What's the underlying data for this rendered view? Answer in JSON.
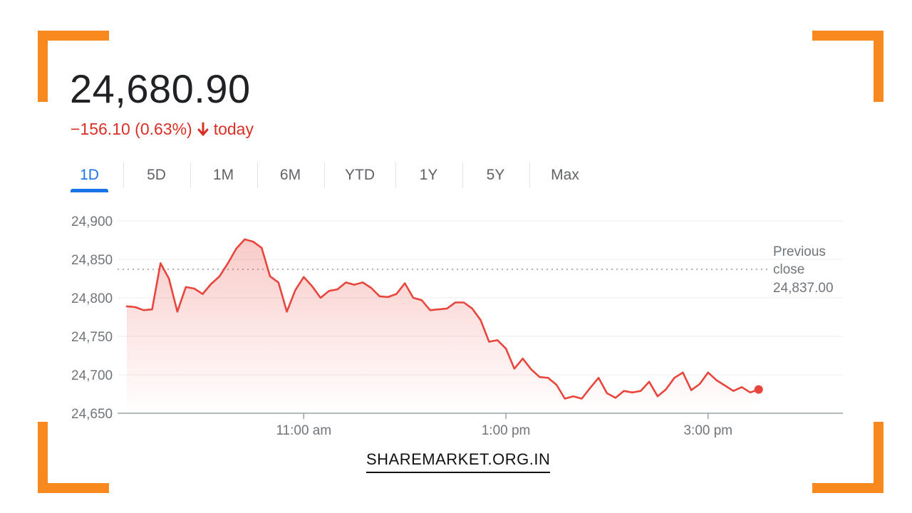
{
  "quote": {
    "price": "24,680.90",
    "change": "−156.10 (0.63%)",
    "change_suffix": "today",
    "change_icon": "arrow-down-icon",
    "change_color": "#d93025"
  },
  "tabs": [
    {
      "label": "1D",
      "active": true
    },
    {
      "label": "5D"
    },
    {
      "label": "1M"
    },
    {
      "label": "6M"
    },
    {
      "label": "YTD"
    },
    {
      "label": "1Y"
    },
    {
      "label": "5Y"
    },
    {
      "label": "Max"
    }
  ],
  "accent_color": "#1a73e8",
  "frame_color": "#f7891f",
  "footer": {
    "label": "SHAREMARKET.ORG.IN"
  },
  "chart_data": {
    "type": "line",
    "x_unit": "time of day",
    "ylim": [
      24650,
      24900
    ],
    "y_ticks": [
      "24,900",
      "24,850",
      "24,800",
      "24,750",
      "24,700",
      "24,650"
    ],
    "y_tick_values": [
      24900,
      24850,
      24800,
      24750,
      24700,
      24650
    ],
    "x_ticks": [
      {
        "label": "11:00 am",
        "minutes": 660
      },
      {
        "label": "1:00 pm",
        "minutes": 780
      },
      {
        "label": "3:00 pm",
        "minutes": 900
      }
    ],
    "x_range_minutes": [
      555,
      980
    ],
    "previous_close": {
      "label_line1": "Previous",
      "label_line2": "close",
      "value_label": "24,837.00",
      "value": 24837
    },
    "line_color": "#e8453c",
    "grid": true,
    "series": [
      {
        "x": [
          555,
          560,
          565,
          570,
          575,
          580,
          585,
          590,
          595,
          600,
          605,
          610,
          615,
          620,
          625,
          630,
          635,
          640,
          645,
          650,
          655,
          660,
          665,
          670,
          675,
          680,
          685,
          690,
          695,
          700,
          705,
          710,
          715,
          720,
          725,
          730,
          735,
          740,
          745,
          750,
          755,
          760,
          765,
          770,
          775,
          780,
          785,
          790,
          795,
          800,
          805,
          810,
          815,
          820,
          825,
          830,
          835,
          840,
          845,
          850,
          855,
          860,
          865,
          870,
          875,
          880,
          885,
          890,
          895,
          900,
          905,
          910,
          915,
          920,
          925,
          930
        ],
        "y": [
          24789,
          24788,
          24784,
          24785,
          24845,
          24825,
          24782,
          24814,
          24812,
          24805,
          24818,
          24828,
          24845,
          24864,
          24876,
          24873,
          24865,
          24828,
          24820,
          24782,
          24810,
          24827,
          24815,
          24800,
          24809,
          24811,
          24820,
          24817,
          24820,
          24813,
          24802,
          24801,
          24805,
          24819,
          24800,
          24797,
          24784,
          24785,
          24786,
          24794,
          24794,
          24786,
          24771,
          24743,
          24745,
          24734,
          24708,
          24721,
          24707,
          24697,
          24696,
          24687,
          24669,
          24672,
          24669,
          24683,
          24696,
          24676,
          24670,
          24679,
          24677,
          24679,
          24691,
          24672,
          24681,
          24696,
          24703,
          24680,
          24688,
          24703,
          24693,
          24686,
          24679,
          24684,
          24677,
          24680.9
        ]
      }
    ]
  }
}
